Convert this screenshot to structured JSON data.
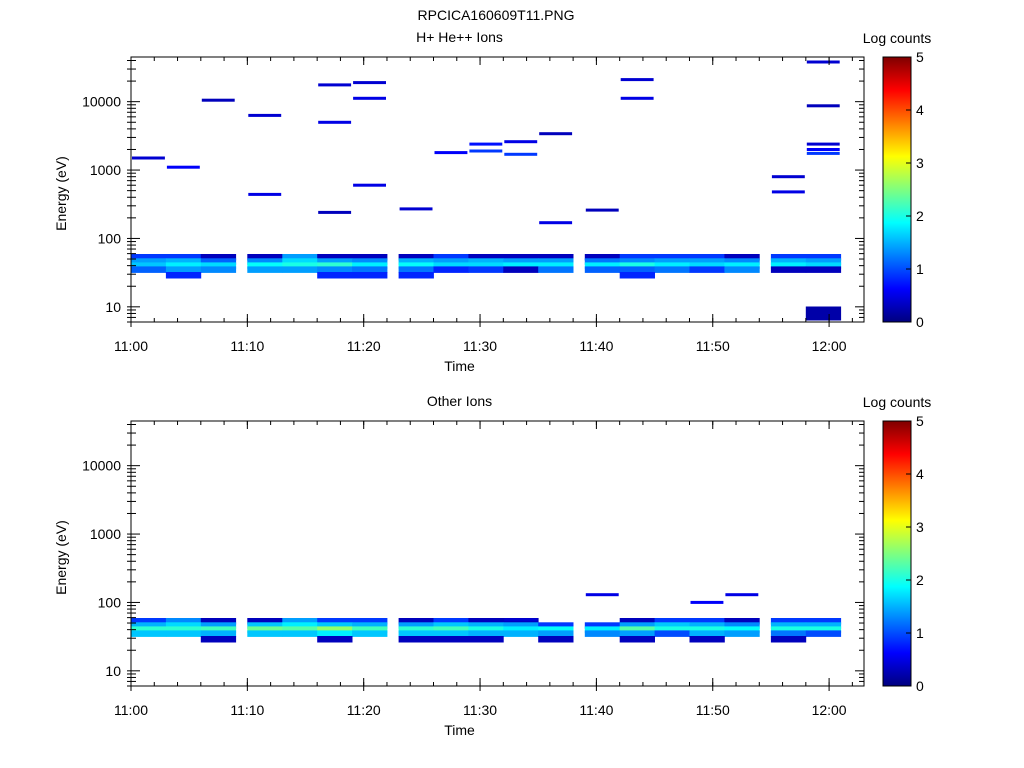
{
  "figure": {
    "title": "RPCICA160609T11.PNG"
  },
  "colorscale": {
    "stops": [
      "#00007f",
      "#0000ff",
      "#007fff",
      "#00ffff",
      "#7fff7f",
      "#ffff00",
      "#ff7f00",
      "#ff0000",
      "#7f0000"
    ]
  },
  "chart_data": [
    {
      "type": "heatmap",
      "title": "H+ He++ Ions",
      "xlabel": "Time",
      "ylabel": "Energy (eV)",
      "x_ticks": [
        "11:00",
        "11:10",
        "11:20",
        "11:30",
        "11:40",
        "11:50",
        "12:00"
      ],
      "x_range": [
        "11:00",
        "12:03"
      ],
      "y_scale": "log",
      "y_range": [
        6,
        45000
      ],
      "y_ticks": [
        "10",
        "100",
        "1000",
        "10000"
      ],
      "colorbar": {
        "label": "Log counts",
        "range": [
          0,
          5
        ],
        "ticks": [
          "0",
          "1",
          "2",
          "3",
          "4",
          "5"
        ]
      },
      "time_bins": [
        "11:00",
        "11:03",
        "11:06",
        "11:10",
        "11:13",
        "11:16",
        "11:19",
        "11:23",
        "11:26",
        "11:29",
        "11:32",
        "11:35",
        "11:39",
        "11:42",
        "11:45",
        "11:48",
        "11:51",
        "11:55",
        "11:58"
      ],
      "energy_bins": [
        {
          "energy": 53,
          "values": [
            0.9,
            0.9,
            0.3,
            0.3,
            1.4,
            0.3,
            0.3,
            0.3,
            0.9,
            0.3,
            0.3,
            0.3,
            0.3,
            0.9,
            0.9,
            0.9,
            0.3,
            0.9,
            0.9
          ]
        },
        {
          "energy": 46,
          "values": [
            1.4,
            1.5,
            1.1,
            1.3,
            1.7,
            1.4,
            1.3,
            1.5,
            1.4,
            1.5,
            1.4,
            1.4,
            1.2,
            1.3,
            1.4,
            1.4,
            1.3,
            1.5,
            1.4
          ]
        },
        {
          "energy": 40,
          "values": [
            1.6,
            1.8,
            1.7,
            1.9,
            2.0,
            2.1,
            1.8,
            1.9,
            1.7,
            1.7,
            1.8,
            1.8,
            1.8,
            2.0,
            1.8,
            1.7,
            1.8,
            1.8,
            1.7
          ]
        },
        {
          "energy": 35,
          "values": [
            1.1,
            1.4,
            1.3,
            1.4,
            1.4,
            1.3,
            1.2,
            1.2,
            0.8,
            0.9,
            0.3,
            1.2,
            1.1,
            1.1,
            1.2,
            0.9,
            1.3,
            0.3,
            0.3
          ]
        },
        {
          "energy": 29,
          "values": [
            null,
            0.8,
            null,
            null,
            null,
            0.8,
            0.8,
            0.8,
            null,
            null,
            null,
            null,
            null,
            0.8,
            null,
            null,
            null,
            null,
            null
          ]
        },
        {
          "energy": 8,
          "values": [
            null,
            null,
            null,
            null,
            null,
            null,
            null,
            null,
            null,
            null,
            null,
            null,
            null,
            null,
            null,
            null,
            null,
            null,
            0.2
          ]
        }
      ],
      "sparse_bins": [
        {
          "t": "11:00",
          "energy": 1500,
          "value": 0.4
        },
        {
          "t": "11:03",
          "energy": 1100,
          "value": 0.6
        },
        {
          "t": "11:06",
          "energy": 10500,
          "value": 0.3
        },
        {
          "t": "11:10",
          "energy": 6300,
          "value": 0.4
        },
        {
          "t": "11:10",
          "energy": 440,
          "value": 0.5
        },
        {
          "t": "11:16",
          "energy": 17600,
          "value": 0.4
        },
        {
          "t": "11:16",
          "energy": 5000,
          "value": 0.5
        },
        {
          "t": "11:16",
          "energy": 240,
          "value": 0.3
        },
        {
          "t": "11:19",
          "energy": 19000,
          "value": 0.4
        },
        {
          "t": "11:19",
          "energy": 11200,
          "value": 0.5
        },
        {
          "t": "11:19",
          "energy": 600,
          "value": 0.5
        },
        {
          "t": "11:23",
          "energy": 270,
          "value": 0.4
        },
        {
          "t": "11:26",
          "energy": 1800,
          "value": 0.6
        },
        {
          "t": "11:29",
          "energy": 2400,
          "value": 0.7
        },
        {
          "t": "11:29",
          "energy": 1900,
          "value": 0.9
        },
        {
          "t": "11:32",
          "energy": 2600,
          "value": 0.5
        },
        {
          "t": "11:32",
          "energy": 1700,
          "value": 0.9
        },
        {
          "t": "11:35",
          "energy": 3400,
          "value": 0.3
        },
        {
          "t": "11:35",
          "energy": 170,
          "value": 0.5
        },
        {
          "t": "11:39",
          "energy": 260,
          "value": 0.3
        },
        {
          "t": "11:42",
          "energy": 21000,
          "value": 0.4
        },
        {
          "t": "11:42",
          "energy": 11200,
          "value": 0.5
        },
        {
          "t": "11:55",
          "energy": 800,
          "value": 0.4
        },
        {
          "t": "11:55",
          "energy": 480,
          "value": 0.5
        },
        {
          "t": "11:58",
          "energy": 38000,
          "value": 0.4
        },
        {
          "t": "11:58",
          "energy": 8700,
          "value": 0.3
        },
        {
          "t": "11:58",
          "energy": 2400,
          "value": 0.4
        },
        {
          "t": "11:58",
          "energy": 2000,
          "value": 0.6
        },
        {
          "t": "11:58",
          "energy": 1750,
          "value": 0.9
        }
      ]
    },
    {
      "type": "heatmap",
      "title": "Other Ions",
      "xlabel": "Time",
      "ylabel": "Energy (eV)",
      "x_ticks": [
        "11:00",
        "11:10",
        "11:20",
        "11:30",
        "11:40",
        "11:50",
        "12:00"
      ],
      "x_range": [
        "11:00",
        "12:03"
      ],
      "y_scale": "log",
      "y_range": [
        6,
        45000
      ],
      "y_ticks": [
        "10",
        "100",
        "1000",
        "10000"
      ],
      "colorbar": {
        "label": "Log counts",
        "range": [
          0,
          5
        ],
        "ticks": [
          "0",
          "1",
          "2",
          "3",
          "4",
          "5"
        ]
      },
      "time_bins": [
        "11:00",
        "11:03",
        "11:06",
        "11:10",
        "11:13",
        "11:16",
        "11:19",
        "11:23",
        "11:26",
        "11:29",
        "11:32",
        "11:35",
        "11:39",
        "11:42",
        "11:45",
        "11:48",
        "11:51",
        "11:55",
        "11:58"
      ],
      "energy_bins": [
        {
          "energy": 53,
          "values": [
            0.9,
            1.3,
            0.3,
            0.3,
            1.4,
            0.9,
            0.9,
            0.3,
            0.9,
            0.3,
            0.3,
            null,
            null,
            0.3,
            0.9,
            0.9,
            0.3,
            0.9,
            0.9
          ]
        },
        {
          "energy": 46,
          "values": [
            1.5,
            1.7,
            1.4,
            1.6,
            1.8,
            1.6,
            1.5,
            1.4,
            1.6,
            1.5,
            1.4,
            0.9,
            0.9,
            1.4,
            1.6,
            1.5,
            1.3,
            1.5,
            1.5
          ]
        },
        {
          "energy": 40,
          "values": [
            2.1,
            2.1,
            2.2,
            2.4,
            2.3,
            2.6,
            2.2,
            2.1,
            2.2,
            2.0,
            1.8,
            1.9,
            1.8,
            2.3,
            2.0,
            2.0,
            1.9,
            2.0,
            2.0
          ]
        },
        {
          "energy": 35,
          "values": [
            1.6,
            1.6,
            1.5,
            1.6,
            1.6,
            1.8,
            1.6,
            1.6,
            1.6,
            1.5,
            1.5,
            1.4,
            1.3,
            1.4,
            1.0,
            1.5,
            1.4,
            1.2,
            1.0
          ]
        },
        {
          "energy": 29,
          "values": [
            null,
            null,
            0.3,
            null,
            null,
            0.3,
            null,
            0.3,
            0.3,
            0.3,
            null,
            0.3,
            null,
            0.3,
            null,
            0.3,
            null,
            0.3,
            null
          ]
        }
      ],
      "sparse_bins": [
        {
          "t": "11:32",
          "energy": 56,
          "value": 0.4
        },
        {
          "t": "11:39",
          "energy": 130,
          "value": 0.5
        },
        {
          "t": "11:48",
          "energy": 100,
          "value": 0.6
        },
        {
          "t": "11:51",
          "energy": 130,
          "value": 0.5
        }
      ]
    }
  ]
}
